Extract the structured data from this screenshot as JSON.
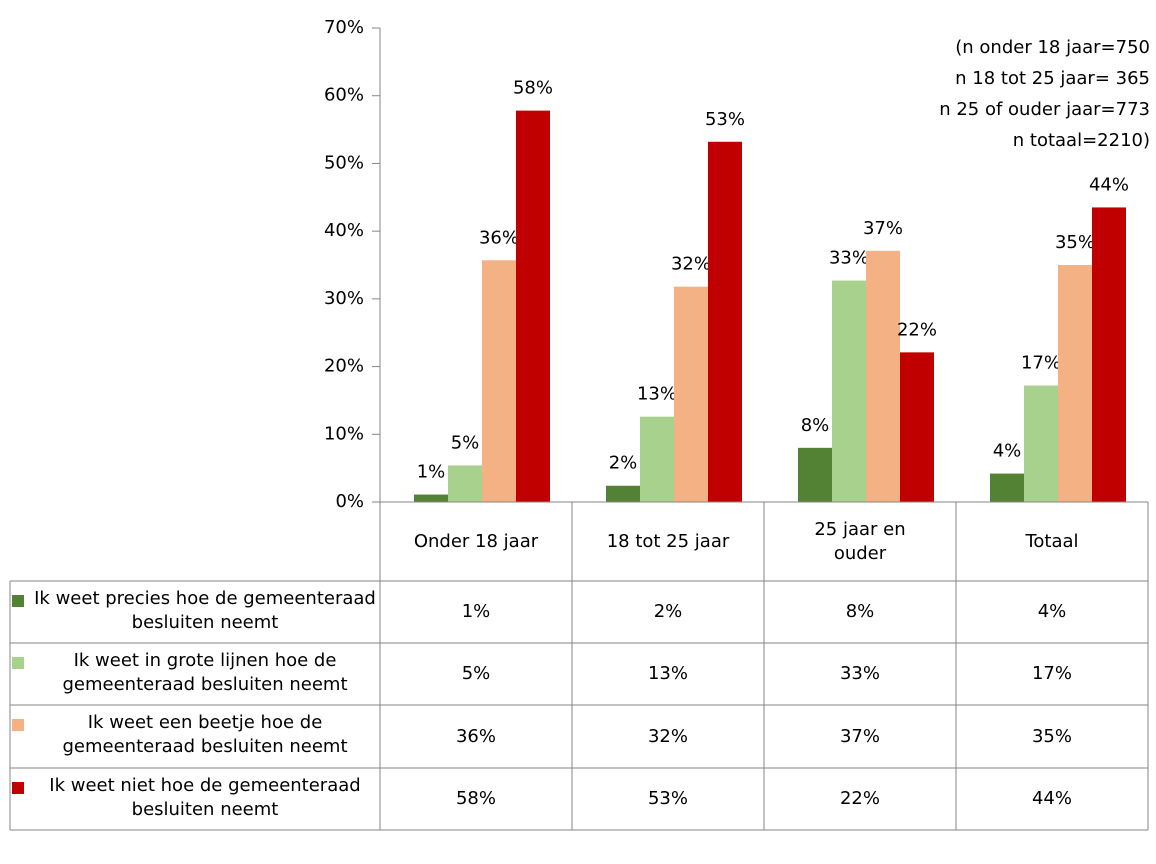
{
  "chart_data": {
    "type": "bar",
    "categories": [
      "Onder 18 jaar",
      "18 tot 25 jaar",
      "25 jaar en ouder",
      "Totaal"
    ],
    "series": [
      {
        "name": "Ik weet precies hoe de gemeenteraad besluiten neemt",
        "color": "#548235",
        "values": [
          1.1,
          2.4,
          8.0,
          4.2
        ],
        "value_labels": [
          "1%",
          "2%",
          "8%",
          "4%"
        ]
      },
      {
        "name": "Ik weet in grote lijnen hoe de gemeenteraad besluiten neemt",
        "color": "#a9d18e",
        "values": [
          5.4,
          12.6,
          32.7,
          17.2
        ],
        "value_labels": [
          "5%",
          "13%",
          "33%",
          "17%"
        ]
      },
      {
        "name": "Ik weet een beetje hoe de gemeenteraad besluiten neemt",
        "color": "#f4b183",
        "values": [
          35.7,
          31.8,
          37.1,
          35.0
        ],
        "value_labels": [
          "36%",
          "32%",
          "37%",
          "35%"
        ]
      },
      {
        "name": "Ik weet niet hoe de gemeenteraad besluiten neemt",
        "color": "#c00000",
        "values": [
          57.8,
          53.2,
          22.1,
          43.5
        ],
        "value_labels": [
          "58%",
          "53%",
          "22%",
          "44%"
        ]
      }
    ],
    "ylim": [
      0,
      70
    ],
    "yticks": [
      {
        "value": 0,
        "label": "0%"
      },
      {
        "value": 10,
        "label": "10%"
      },
      {
        "value": 20,
        "label": "20%"
      },
      {
        "value": 30,
        "label": "30%"
      },
      {
        "value": 40,
        "label": "40%"
      },
      {
        "value": 50,
        "label": "50%"
      },
      {
        "value": 60,
        "label": "60%"
      },
      {
        "value": 70,
        "label": "70%"
      }
    ],
    "annotations": [
      "(n onder 18 jaar=750",
      "n 18 tot 25 jaar= 365",
      "n 25 of ouder jaar=773",
      "n totaal=2210)"
    ],
    "grid": false
  }
}
